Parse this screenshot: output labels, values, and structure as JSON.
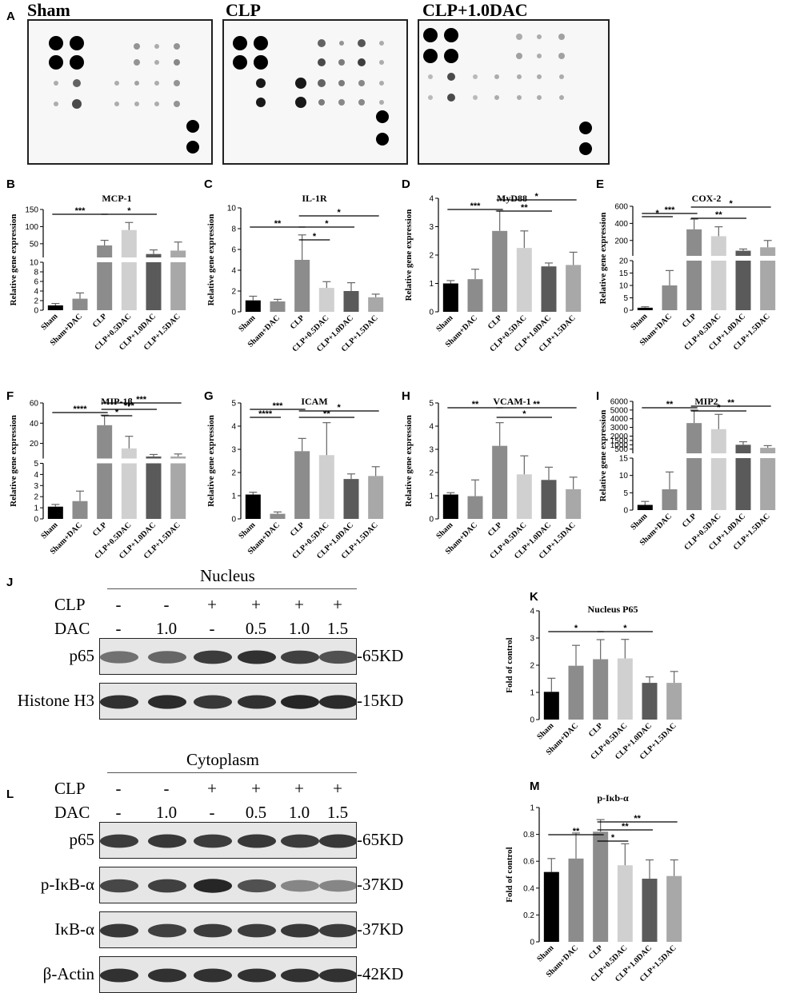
{
  "panel_letters": {
    "A": "A",
    "B": "B",
    "C": "C",
    "D": "D",
    "E": "E",
    "F": "F",
    "G": "G",
    "H": "H",
    "I": "I",
    "J": "J",
    "K": "K",
    "L": "L",
    "M": "M"
  },
  "arrays": [
    {
      "title": "Sham"
    },
    {
      "title": "CLP"
    },
    {
      "title": "CLP+1.0DAC"
    }
  ],
  "colors": {
    "black": "#000000",
    "mid": "#8c8c8c",
    "light": "#d0d0d0",
    "dark": "#5a5a5a",
    "gray": "#a8a8a8"
  },
  "groups": [
    "Sham",
    "Sham+DAC",
    "CLP",
    "CLP+0.5DAC",
    "CLP+1.0DAC",
    "CLP+1.5DAC"
  ],
  "ylabel": "Relative gene expression",
  "chart_data": [
    {
      "type": "bar",
      "title": "MCP-1",
      "categories": [
        "Sham",
        "Sham+DAC",
        "CLP",
        "CLP+0.5DAC",
        "CLP+1.0DAC",
        "CLP+1.5DAC"
      ],
      "values": [
        1,
        2.4,
        45,
        90,
        20,
        30
      ],
      "errors": [
        0.4,
        1.2,
        15,
        22,
        12,
        25
      ],
      "ylabel": "Relative gene expression",
      "axis_break": true,
      "lower_ticks": [
        0,
        2,
        4,
        6,
        8,
        10
      ],
      "upper_ticks": [
        50,
        100,
        150
      ],
      "sig": [
        {
          "from": 0,
          "to": 2,
          "label": "***"
        },
        {
          "from": 2,
          "to": 4,
          "label": "*"
        }
      ]
    },
    {
      "type": "bar",
      "title": "IL-1R",
      "categories": [
        "Sham",
        "Sham+DAC",
        "CLP",
        "CLP+0.5DAC",
        "CLP+1.0DAC",
        "CLP+1.5DAC"
      ],
      "values": [
        1.1,
        1.0,
        5.0,
        2.3,
        2.0,
        1.4
      ],
      "errors": [
        0.4,
        0.2,
        2.4,
        0.6,
        0.8,
        0.3
      ],
      "ylabel": "Relative gene expression",
      "ylim": [
        0,
        10
      ],
      "ticks": [
        0,
        2,
        4,
        6,
        8,
        10
      ],
      "sig": [
        {
          "from": 0,
          "to": 2,
          "label": "**"
        },
        {
          "from": 2,
          "to": 3,
          "label": "*"
        },
        {
          "from": 2,
          "to": 4,
          "label": "*"
        },
        {
          "from": 2,
          "to": 5,
          "label": "*"
        }
      ]
    },
    {
      "type": "bar",
      "title": "MyD88",
      "categories": [
        "Sham",
        "Sham+DAC",
        "CLP",
        "CLP+0.5DAC",
        "CLP+1.0DAC",
        "CLP+1.5DAC"
      ],
      "values": [
        1.0,
        1.15,
        2.85,
        2.25,
        1.6,
        1.65
      ],
      "errors": [
        0.1,
        0.35,
        0.7,
        0.6,
        0.12,
        0.45
      ],
      "ylabel": "Relative gene expression",
      "ylim": [
        0,
        4
      ],
      "ticks": [
        0,
        1,
        2,
        3,
        4
      ],
      "sig": [
        {
          "from": 0,
          "to": 2,
          "label": "***"
        },
        {
          "from": 2,
          "to": 4,
          "label": "**"
        },
        {
          "from": 2,
          "to": 5,
          "label": "*"
        }
      ]
    },
    {
      "type": "bar",
      "title": "COX-2",
      "categories": [
        "Sham",
        "Sham+DAC",
        "CLP",
        "CLP+0.5DAC",
        "CLP+1.0DAC",
        "CLP+1.5DAC"
      ],
      "values": [
        1,
        10,
        330,
        250,
        80,
        120
      ],
      "errors": [
        0.4,
        6,
        120,
        110,
        20,
        80
      ],
      "ylabel": "Relative gene expression",
      "axis_break": true,
      "lower_ticks": [
        0,
        5,
        10,
        15,
        20
      ],
      "upper_ticks": [
        200,
        400,
        600
      ],
      "sig": [
        {
          "from": 0,
          "to": 1,
          "label": "*"
        },
        {
          "from": 0,
          "to": 2,
          "label": "***"
        },
        {
          "from": 2,
          "to": 4,
          "label": "**"
        },
        {
          "from": 2,
          "to": 5,
          "label": "*"
        }
      ]
    },
    {
      "type": "bar",
      "title": "MIP-1β",
      "categories": [
        "Sham",
        "Sham+DAC",
        "CLP",
        "CLP+0.5DAC",
        "CLP+1.0DAC",
        "CLP+1.5DAC"
      ],
      "values": [
        1.1,
        1.6,
        38,
        15,
        7,
        7
      ],
      "errors": [
        0.2,
        0.9,
        10,
        12,
        2,
        2.5
      ],
      "ylabel": "Relative gene expression",
      "axis_break": true,
      "lower_ticks": [
        0,
        1,
        2,
        3,
        4,
        5
      ],
      "upper_ticks": [
        20,
        40,
        60
      ],
      "sig": [
        {
          "from": 0,
          "to": 2,
          "label": "****"
        },
        {
          "from": 2,
          "to": 3,
          "label": "*"
        },
        {
          "from": 2,
          "to": 4,
          "label": "***"
        },
        {
          "from": 2,
          "to": 5,
          "label": "***"
        }
      ]
    },
    {
      "type": "bar",
      "title": "ICAM",
      "categories": [
        "Sham",
        "Sham+DAC",
        "CLP",
        "CLP+0.5DAC",
        "CLP+1.0DAC",
        "CLP+1.5DAC"
      ],
      "values": [
        1.05,
        0.22,
        2.92,
        2.75,
        1.72,
        1.85
      ],
      "errors": [
        0.1,
        0.08,
        0.55,
        1.4,
        0.22,
        0.4
      ],
      "ylabel": "Relative gene expression",
      "ylim": [
        0,
        5
      ],
      "ticks": [
        0,
        1,
        2,
        3,
        4,
        5
      ],
      "sig": [
        {
          "from": 0,
          "to": 1,
          "label": "****"
        },
        {
          "from": 0,
          "to": 2,
          "label": "***"
        },
        {
          "from": 2,
          "to": 4,
          "label": "**"
        },
        {
          "from": 2,
          "to": 5,
          "label": "*"
        }
      ]
    },
    {
      "type": "bar",
      "title": "VCAM-1",
      "categories": [
        "Sham",
        "Sham+DAC",
        "CLP",
        "CLP+0.5DAC",
        "CLP+1.0DAC",
        "CLP+1.5DAC"
      ],
      "values": [
        1.05,
        0.98,
        3.15,
        1.92,
        1.68,
        1.28
      ],
      "errors": [
        0.08,
        0.7,
        1.0,
        0.8,
        0.55,
        0.52
      ],
      "ylabel": "Relative gene expression",
      "ylim": [
        0,
        5
      ],
      "ticks": [
        0,
        1,
        2,
        3,
        4,
        5
      ],
      "sig": [
        {
          "from": 0,
          "to": 2,
          "label": "**"
        },
        {
          "from": 2,
          "to": 4,
          "label": "*"
        },
        {
          "from": 2,
          "to": 5,
          "label": "**"
        }
      ]
    },
    {
      "type": "bar",
      "title": "MIP2",
      "categories": [
        "Sham",
        "Sham+DAC",
        "CLP",
        "CLP+0.5DAC",
        "CLP+1.0DAC",
        "CLP+1.5DAC"
      ],
      "values": [
        1.5,
        6,
        3500,
        2800,
        1000,
        650
      ],
      "errors": [
        1,
        5,
        1500,
        1700,
        350,
        250
      ],
      "ylabel": "Relative gene expression",
      "axis_break": true,
      "lower_ticks": [
        0,
        5,
        10,
        15
      ],
      "upper_ticks": [
        500,
        1000,
        1500,
        2000,
        3000,
        4000,
        5000,
        6000
      ],
      "sig": [
        {
          "from": 0,
          "to": 2,
          "label": "**"
        },
        {
          "from": 2,
          "to": 4,
          "label": "*"
        },
        {
          "from": 2,
          "to": 5,
          "label": "**"
        }
      ]
    },
    {
      "type": "bar",
      "title": "Nucleus P65",
      "categories": [
        "Sham",
        "Sham+DAC",
        "CLP",
        "CLP+0.5DAC",
        "CLP+1.0DAC",
        "CLP+1.5DAC"
      ],
      "values": [
        1.02,
        1.98,
        2.22,
        2.25,
        1.35,
        1.35
      ],
      "errors": [
        0.5,
        0.75,
        0.72,
        0.7,
        0.22,
        0.42
      ],
      "ylabel": "Fold of control",
      "ylim": [
        0,
        4
      ],
      "ticks": [
        0,
        1,
        2,
        3,
        4
      ],
      "sig": [
        {
          "from": 0,
          "to": 2,
          "label": "*"
        },
        {
          "from": 2,
          "to": 4,
          "label": "*"
        }
      ]
    },
    {
      "type": "bar",
      "title": "p-Iκb-α",
      "categories": [
        "Sham",
        "Sham+DAC",
        "CLP",
        "CLP+0.5DAC",
        "CLP+1.0DAC",
        "CLP+1.5DAC"
      ],
      "values": [
        0.52,
        0.62,
        0.82,
        0.57,
        0.47,
        0.49
      ],
      "errors": [
        0.1,
        0.19,
        0.09,
        0.16,
        0.14,
        0.12
      ],
      "ylabel": "Fold of control",
      "ylim": [
        0,
        1.0
      ],
      "ticks": [
        0.0,
        0.2,
        0.4,
        0.6,
        0.8,
        1.0
      ],
      "sig": [
        {
          "from": 0,
          "to": 2,
          "label": "**"
        },
        {
          "from": 2,
          "to": 3,
          "label": "*"
        },
        {
          "from": 2,
          "to": 4,
          "label": "**"
        },
        {
          "from": 2,
          "to": 5,
          "label": "**"
        }
      ]
    }
  ],
  "western_nucleus": {
    "header": "Nucleus",
    "clp_label": "CLP",
    "dac_label": "DAC",
    "clp": [
      "-",
      "-",
      "+",
      "+",
      "+",
      "+"
    ],
    "dac": [
      "-",
      "1.0",
      "-",
      "0.5",
      "1.0",
      "1.5"
    ],
    "rows": [
      {
        "name": "p65",
        "size": "-65KD",
        "intensity": [
          0.55,
          0.6,
          0.8,
          0.85,
          0.78,
          0.7
        ]
      },
      {
        "name": "Histone H3",
        "size": "-15KD",
        "intensity": [
          0.85,
          0.88,
          0.82,
          0.85,
          0.9,
          0.88
        ]
      }
    ]
  },
  "western_cyto": {
    "header": "Cytoplasm",
    "clp_label": "CLP",
    "dac_label": "DAC",
    "clp": [
      "-",
      "-",
      "+",
      "+",
      "+",
      "+"
    ],
    "dac": [
      "-",
      "1.0",
      "-",
      "0.5",
      "1.0",
      "1.5"
    ],
    "rows": [
      {
        "name": "p65",
        "size": "-65KD",
        "intensity": [
          0.8,
          0.82,
          0.8,
          0.82,
          0.8,
          0.82
        ]
      },
      {
        "name": "p-IκB-α",
        "size": "-37KD",
        "intensity": [
          0.75,
          0.78,
          0.9,
          0.7,
          0.45,
          0.45
        ]
      },
      {
        "name": "IκB-α",
        "size": "-37KD",
        "intensity": [
          0.82,
          0.78,
          0.8,
          0.8,
          0.82,
          0.8
        ]
      },
      {
        "name": "β-Actin",
        "size": "-42KD",
        "intensity": [
          0.85,
          0.85,
          0.85,
          0.85,
          0.85,
          0.85
        ]
      }
    ]
  }
}
